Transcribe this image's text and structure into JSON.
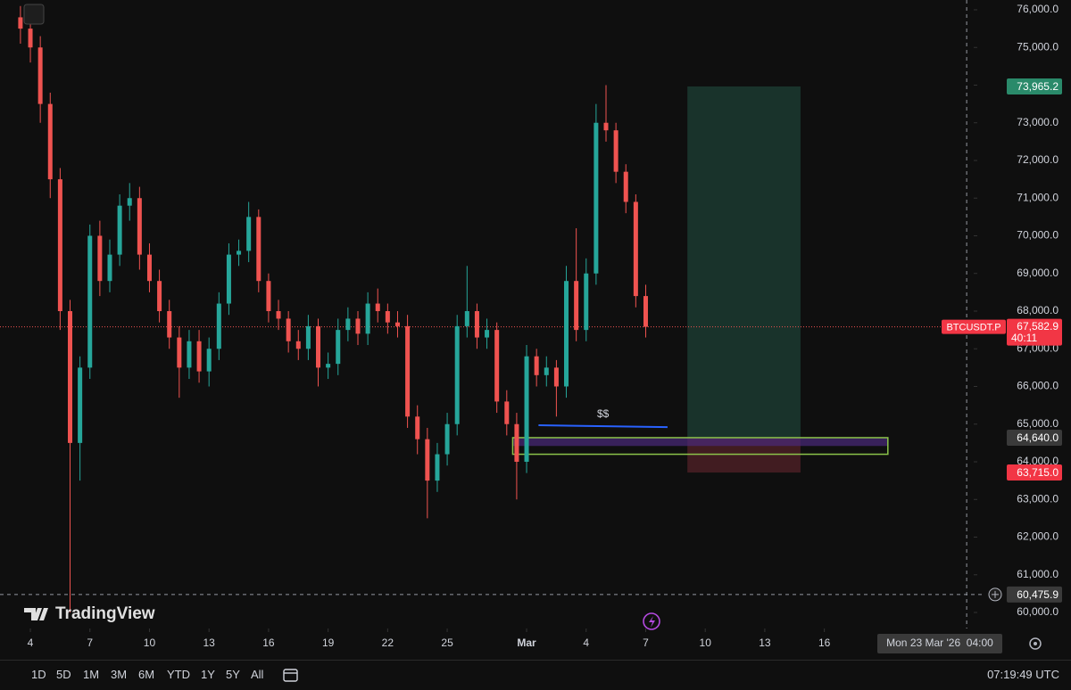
{
  "chart_data": {
    "type": "candlestick",
    "symbol": "BTCUSDT.P",
    "up_color": "#26a69a",
    "down_color": "#ef5350",
    "x": [
      -0.5,
      0,
      0.5,
      1,
      1.5,
      2,
      2.5,
      3,
      3.5,
      4,
      4.5,
      5,
      5.5,
      6,
      6.5,
      7,
      7.5,
      8,
      8.5,
      9,
      9.5,
      10,
      10.5,
      11,
      11.5,
      12,
      12.5,
      13,
      13.5,
      14,
      14.5,
      15,
      15.5,
      16,
      16.5,
      17,
      17.5,
      18,
      18.5,
      19,
      19.5,
      20,
      20.5,
      21,
      21.5,
      22,
      22.5,
      23,
      23.5,
      24,
      24.5,
      25,
      25.5,
      26,
      26.5,
      27,
      27.5,
      28,
      28.5,
      29,
      29.5,
      30,
      30.5,
      31
    ],
    "open": [
      75800,
      75500,
      75000,
      73500,
      71500,
      68000,
      64500,
      66500,
      70000,
      68800,
      69500,
      70800,
      71000,
      69500,
      68800,
      68000,
      67300,
      66500,
      67200,
      66400,
      67000,
      68200,
      69500,
      69600,
      70500,
      68800,
      68000,
      67800,
      67200,
      67000,
      67600,
      66500,
      66600,
      67500,
      67800,
      67400,
      68200,
      68000,
      67700,
      67600,
      65200,
      64600,
      63500,
      64200,
      65000,
      67600,
      68000,
      67300,
      67500,
      65600,
      65000,
      64000,
      66800,
      66300,
      66500,
      66000,
      68800,
      67500,
      69000,
      73000,
      72800,
      71700,
      70900,
      68400
    ],
    "high": [
      76100,
      75800,
      75300,
      73800,
      71800,
      68300,
      66800,
      70300,
      70400,
      69900,
      71100,
      71400,
      71300,
      69800,
      69100,
      68300,
      67600,
      67500,
      67500,
      67300,
      68500,
      69800,
      69900,
      70900,
      70700,
      69000,
      68300,
      68000,
      67500,
      67900,
      67800,
      66900,
      67800,
      68100,
      68000,
      68500,
      68600,
      68200,
      68000,
      67900,
      65500,
      64900,
      64500,
      65300,
      67900,
      69200,
      68200,
      67800,
      67700,
      65900,
      65300,
      67100,
      67000,
      66800,
      66700,
      69200,
      70200,
      69400,
      73500,
      74000,
      73000,
      71900,
      71100,
      68700
    ],
    "low": [
      75100,
      74600,
      73000,
      71000,
      67500,
      60000,
      63500,
      66200,
      68400,
      68500,
      69200,
      70400,
      69100,
      68500,
      67700,
      67000,
      65700,
      66200,
      66100,
      66000,
      66700,
      67900,
      69200,
      69300,
      68500,
      67700,
      67500,
      66900,
      66700,
      66700,
      66000,
      66200,
      66300,
      67200,
      67100,
      67100,
      67700,
      67400,
      67300,
      64900,
      64200,
      62500,
      63200,
      63900,
      64700,
      67300,
      67000,
      67000,
      65300,
      64700,
      63000,
      63700,
      66000,
      66000,
      65200,
      65700,
      67200,
      67200,
      68700,
      72500,
      71400,
      70600,
      68100,
      67300
    ],
    "close": [
      75500,
      75000,
      73500,
      71500,
      68000,
      64500,
      66500,
      70000,
      68800,
      69500,
      70800,
      71000,
      69500,
      68800,
      68000,
      67300,
      66500,
      67200,
      66400,
      67000,
      68200,
      69500,
      69600,
      70500,
      68800,
      68000,
      67800,
      67200,
      67000,
      67600,
      66500,
      66600,
      67500,
      67800,
      67400,
      68200,
      68000,
      67700,
      67600,
      65200,
      64600,
      63500,
      64200,
      65000,
      67600,
      68000,
      67300,
      67500,
      65600,
      65000,
      64000,
      66800,
      66300,
      66500,
      66000,
      68800,
      67500,
      69000,
      73000,
      72800,
      71700,
      70900,
      68400,
      67583
    ],
    "xlim": [
      -1.53,
      47.48
    ],
    "xticks": [
      {
        "value": 0,
        "label": "4"
      },
      {
        "value": 3,
        "label": "7"
      },
      {
        "value": 6,
        "label": "10"
      },
      {
        "value": 9,
        "label": "13"
      },
      {
        "value": 12,
        "label": "16"
      },
      {
        "value": 15,
        "label": "19"
      },
      {
        "value": 18,
        "label": "22"
      },
      {
        "value": 21,
        "label": "25"
      },
      {
        "value": 25,
        "label": "Mar"
      },
      {
        "value": 28,
        "label": "4"
      },
      {
        "value": 31,
        "label": "7"
      },
      {
        "value": 34,
        "label": "10"
      },
      {
        "value": 37,
        "label": "13"
      },
      {
        "value": 40,
        "label": "16"
      }
    ],
    "ylim": [
      59574,
      76260
    ],
    "yticks": [
      {
        "value": 60000,
        "label": "60,000.0"
      },
      {
        "value": 61000,
        "label": "61,000.0"
      },
      {
        "value": 62000,
        "label": "62,000.0"
      },
      {
        "value": 63000,
        "label": "63,000.0"
      },
      {
        "value": 64000,
        "label": "64,000.0"
      },
      {
        "value": 65000,
        "label": "65,000.0"
      },
      {
        "value": 66000,
        "label": "66,000.0"
      },
      {
        "value": 67000,
        "label": "67,000.0"
      },
      {
        "value": 68000,
        "label": "68,000.0"
      },
      {
        "value": 69000,
        "label": "69,000.0"
      },
      {
        "value": 70000,
        "label": "70,000.0"
      },
      {
        "value": 71000,
        "label": "71,000.0"
      },
      {
        "value": 72000,
        "label": "72,000.0"
      },
      {
        "value": 73000,
        "label": "73,000.0"
      },
      {
        "value": 74000,
        "label": "74,000.0"
      },
      {
        "value": 75000,
        "label": "75,000.0"
      },
      {
        "value": 76000,
        "label": "76,000.0"
      }
    ],
    "last_price": {
      "value": 67582.9,
      "label": "67,582.9"
    },
    "countdown": "40:11",
    "position": {
      "x": [
        33.1,
        38.8
      ],
      "target": {
        "value": 73965.2,
        "label": "73,965.2"
      },
      "entry": {
        "value": 64640,
        "label": "64,640.0"
      },
      "stop": {
        "value": 63715,
        "label": "63,715.0"
      }
    },
    "zone": {
      "x": [
        24.3,
        43.2
      ],
      "y": [
        64200,
        64640
      ]
    },
    "level_line": {
      "x": [
        25.6,
        32.1
      ],
      "y": [
        64970,
        64920
      ],
      "label": "$$"
    },
    "crosshair": {
      "x": 47.17,
      "x_label": "Mon 23 Mar '26  04:00",
      "y": {
        "value": 60475.9,
        "label": "60,475.9"
      }
    }
  },
  "ui": {
    "logo": "TradingView",
    "timeframes": [
      "1D",
      "5D",
      "1M",
      "3M",
      "6M",
      "YTD",
      "1Y",
      "5Y",
      "All"
    ],
    "clock": "07:19:49 UTC"
  }
}
